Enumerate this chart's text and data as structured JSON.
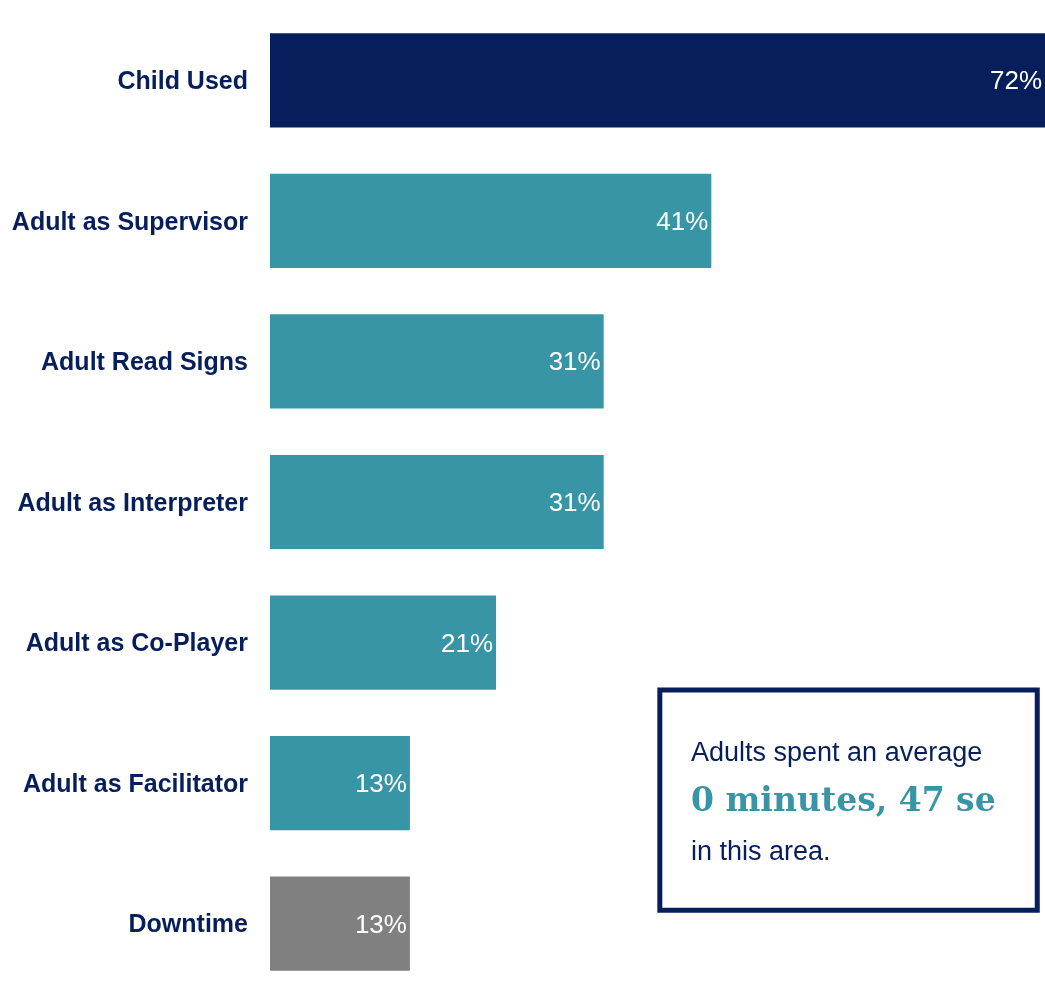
{
  "chart_data": {
    "type": "bar",
    "orientation": "horizontal",
    "categories": [
      "Child Used",
      "Adult as Supervisor",
      "Adult Read Signs",
      "Adult as Interpreter",
      "Adult as Co-Player",
      "Adult as Facilitator",
      "Downtime"
    ],
    "values": [
      72,
      41,
      31,
      31,
      21,
      13,
      13
    ],
    "value_labels": [
      "72%",
      "41%",
      "31%",
      "31%",
      "21%",
      "13%",
      "13%"
    ],
    "colors": [
      "#061f5c",
      "#3795a6",
      "#3795a6",
      "#3795a6",
      "#3795a6",
      "#3795a6",
      "#808080"
    ],
    "annotations": [
      "Adults spent an average",
      "0 minutes, 47 se",
      "in this area."
    ]
  }
}
